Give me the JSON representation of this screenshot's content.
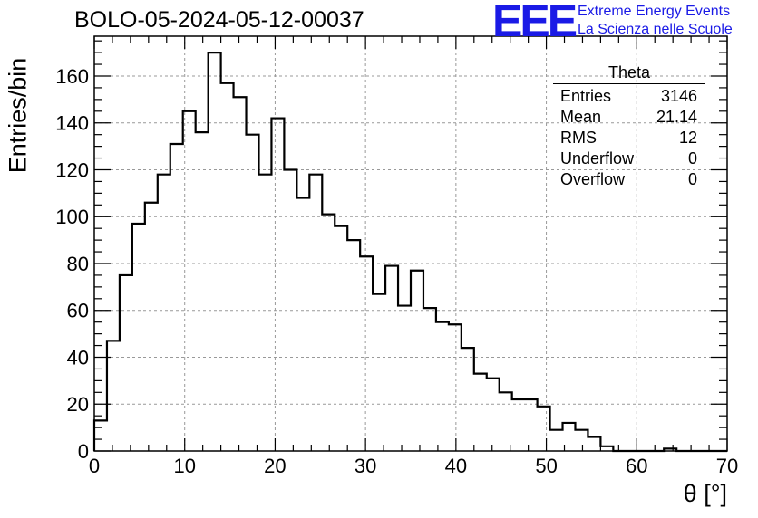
{
  "header": {
    "title": "BOLO-05-2024-05-12-00037",
    "logo_text": "EEE",
    "logo_line1": "Extreme Energy Events",
    "logo_line2": "La Scienza nelle Scuole"
  },
  "stats_box": {
    "title": "Theta",
    "rows": [
      {
        "label": "Entries",
        "value": "3146"
      },
      {
        "label": "Mean",
        "value": "21.14"
      },
      {
        "label": "RMS",
        "value": "12"
      },
      {
        "label": "Underflow",
        "value": "0"
      },
      {
        "label": "Overflow",
        "value": "0"
      }
    ]
  },
  "colors": {
    "line": "#000000",
    "grid": "#999999",
    "logo": "#1a1ae6"
  },
  "chart_data": {
    "type": "bar",
    "histogram_style": "step",
    "xlabel": "θ [°]",
    "ylabel": "Entries/bin",
    "xlim": [
      0,
      70
    ],
    "ylim": [
      0,
      177
    ],
    "grid": true,
    "x_ticks": [
      0,
      10,
      20,
      30,
      40,
      50,
      60,
      70
    ],
    "y_ticks": [
      0,
      20,
      40,
      60,
      80,
      100,
      120,
      140,
      160
    ],
    "bin_width": 1.4,
    "bin_edges_start": 0,
    "values": [
      13,
      47,
      75,
      97,
      106,
      118,
      131,
      145,
      136,
      170,
      157,
      151,
      135,
      118,
      142,
      120,
      108,
      118,
      101,
      96,
      90,
      83,
      67,
      79,
      62,
      77,
      61,
      55,
      54,
      44,
      33,
      31,
      25,
      22,
      22,
      19,
      9,
      12,
      9,
      6,
      2,
      0,
      0,
      0,
      0,
      1,
      0,
      0,
      0,
      0
    ]
  }
}
